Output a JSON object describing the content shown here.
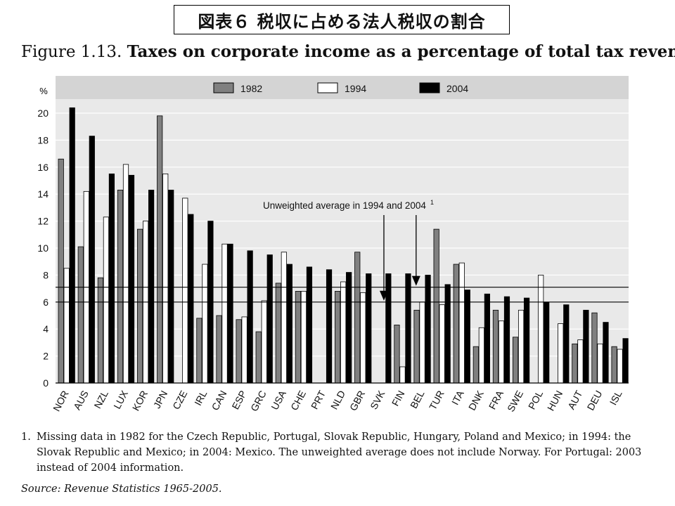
{
  "slide_title": "図表６ 税収に占める法人税収の割合",
  "figure": {
    "number": "Figure 1.13.",
    "title": "Taxes on corporate income as a percentage of total tax revenue"
  },
  "note": {
    "marker": "1.",
    "text": "Missing data in 1982 for the Czech Republic, Portugal, Slovak Republic, Hungary, Poland and Mexico; in 1994: the Slovak Republic and Mexico; in 2004: Mexico. The unweighted average does not include Norway. For Portugal: 2003 instead of 2004 information."
  },
  "source": {
    "label": "Source:",
    "text": "Revenue Statistics 1965-2005."
  },
  "chart_data": {
    "type": "bar",
    "ylabel": "%",
    "ylim": [
      0,
      20
    ],
    "yticks": [
      0,
      2,
      4,
      6,
      8,
      10,
      12,
      14,
      16,
      18,
      20
    ],
    "grid": true,
    "legend_position": "top",
    "categories": [
      "NOR",
      "AUS",
      "NZL",
      "LUX",
      "KOR",
      "JPN",
      "CZE",
      "IRL",
      "CAN",
      "ESP",
      "GRC",
      "USA",
      "CHE",
      "PRT",
      "NLD",
      "GBR",
      "SVK",
      "FIN",
      "BEL",
      "TUR",
      "ITA",
      "DNK",
      "FRA",
      "SWE",
      "POL",
      "HUN",
      "AUT",
      "DEU",
      "ISL"
    ],
    "series": [
      {
        "name": "1982",
        "color": "#808080",
        "values": [
          16.6,
          10.1,
          7.8,
          14.3,
          11.4,
          19.8,
          null,
          4.8,
          5.0,
          4.7,
          3.8,
          7.4,
          6.8,
          null,
          6.8,
          9.7,
          null,
          4.3,
          5.4,
          11.4,
          8.8,
          2.7,
          5.4,
          3.4,
          null,
          null,
          2.9,
          5.2,
          2.7
        ]
      },
      {
        "name": "1994",
        "color": "#ffffff",
        "values": [
          8.5,
          14.2,
          12.3,
          16.2,
          12.0,
          15.5,
          13.7,
          8.8,
          10.3,
          4.9,
          6.1,
          9.7,
          6.8,
          null,
          7.5,
          6.7,
          null,
          1.2,
          6.0,
          5.8,
          8.9,
          4.1,
          4.6,
          5.4,
          8.0,
          4.4,
          3.2,
          2.9,
          2.5
        ]
      },
      {
        "name": "2004",
        "color": "#000000",
        "values": [
          20.4,
          18.3,
          15.5,
          15.4,
          14.3,
          14.3,
          12.5,
          12.0,
          10.3,
          9.8,
          9.5,
          8.8,
          8.6,
          8.4,
          8.2,
          8.1,
          8.1,
          8.1,
          8.0,
          7.3,
          6.9,
          6.6,
          6.4,
          6.3,
          6.0,
          5.8,
          5.4,
          4.5,
          3.3
        ]
      }
    ],
    "reference_lines": [
      {
        "value": 7.1
      },
      {
        "value": 6.0
      }
    ],
    "annotation": {
      "text": "Unweighted average in 1994 and 2004",
      "footnote_marker": "1",
      "arrow_targets": [
        "SVK",
        "BEL"
      ]
    }
  }
}
